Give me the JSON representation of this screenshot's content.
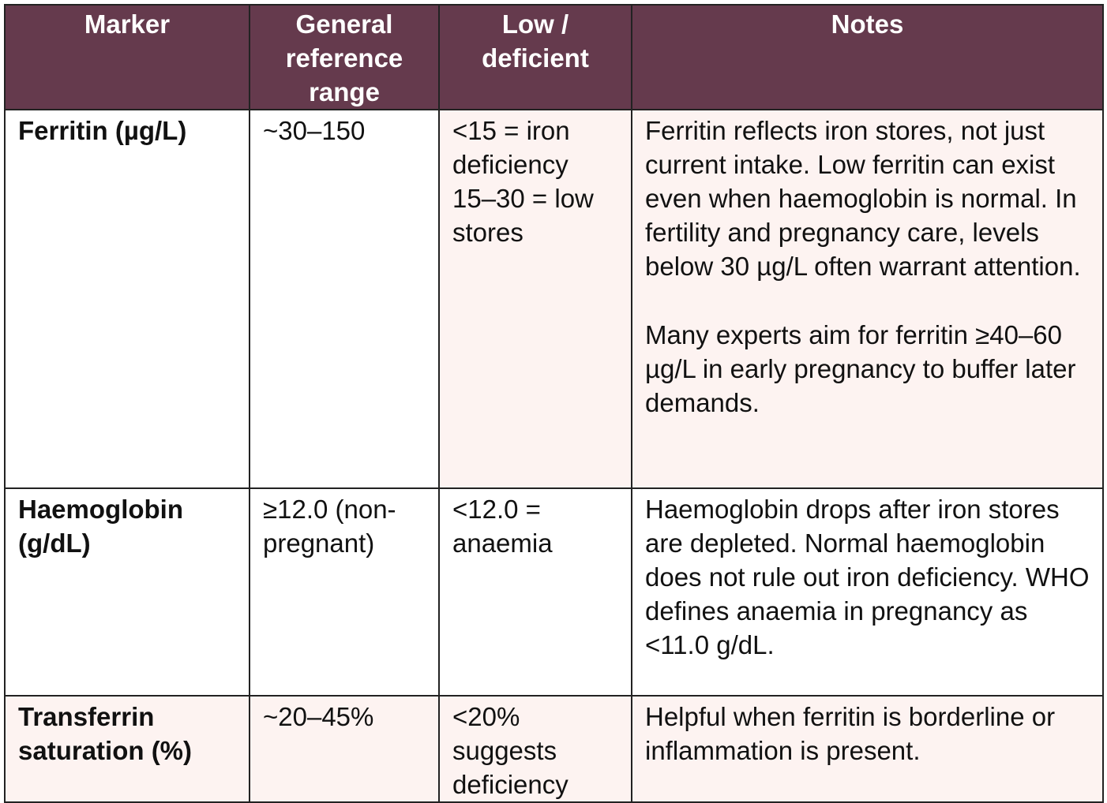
{
  "table": {
    "header": [
      "Marker",
      "General reference range",
      "Low / deficient",
      "Notes"
    ],
    "rows": [
      [
        [
          "Ferritin (µg/L)"
        ],
        [
          "~30–150"
        ],
        [
          "<15 = iron deficiency",
          "15–30 = low stores"
        ],
        [
          "Ferritin reflects iron stores, not just current intake. Low ferritin can exist even when haemoglobin is normal. In fertility and pregnancy care, levels below 30 µg/L often warrant attention.",
          "Many experts aim for ferritin ≥40–60 µg/L in early pregnancy to buffer later demands."
        ]
      ],
      [
        [
          "Haemoglobin (g/dL)"
        ],
        [
          "≥12.0 (non-pregnant)"
        ],
        [
          "<12.0 = anaemia"
        ],
        [
          "Haemoglobin drops after iron stores are depleted. Normal haemoglobin does not rule out iron deficiency. WHO defines anaemia in pregnancy as <11.0 g/dL."
        ]
      ],
      [
        [
          "Transferrin saturation (%)"
        ],
        [
          "~20–45%"
        ],
        [
          "<20% suggests deficiency"
        ],
        [
          "Helpful when ferritin is borderline or inflammation is present."
        ]
      ]
    ]
  }
}
